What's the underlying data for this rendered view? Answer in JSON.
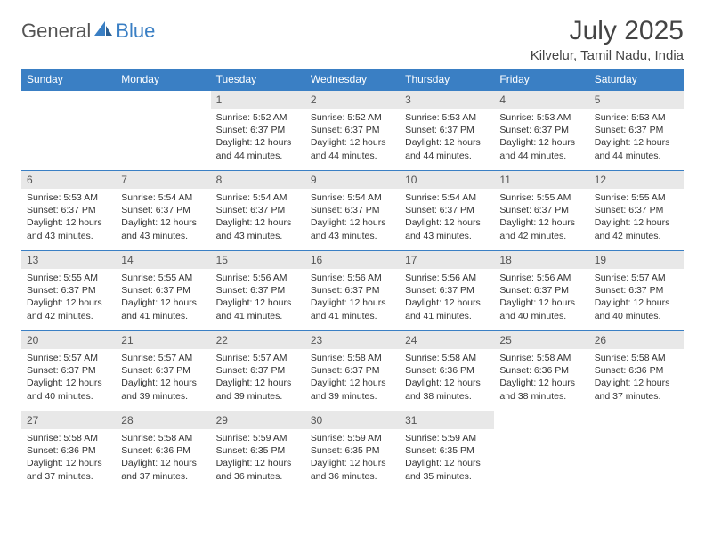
{
  "logo": {
    "text1": "General",
    "text2": "Blue"
  },
  "title": "July 2025",
  "location": "Kilvelur, Tamil Nadu, India",
  "colors": {
    "header_bg": "#3a7fc4",
    "header_text": "#ffffff",
    "daynum_bg": "#e8e8e8",
    "border": "#3a7fc4",
    "text": "#333333"
  },
  "weekdays": [
    "Sunday",
    "Monday",
    "Tuesday",
    "Wednesday",
    "Thursday",
    "Friday",
    "Saturday"
  ],
  "weeks": [
    [
      null,
      null,
      {
        "n": "1",
        "sr": "5:52 AM",
        "ss": "6:37 PM",
        "dl": "12 hours and 44 minutes."
      },
      {
        "n": "2",
        "sr": "5:52 AM",
        "ss": "6:37 PM",
        "dl": "12 hours and 44 minutes."
      },
      {
        "n": "3",
        "sr": "5:53 AM",
        "ss": "6:37 PM",
        "dl": "12 hours and 44 minutes."
      },
      {
        "n": "4",
        "sr": "5:53 AM",
        "ss": "6:37 PM",
        "dl": "12 hours and 44 minutes."
      },
      {
        "n": "5",
        "sr": "5:53 AM",
        "ss": "6:37 PM",
        "dl": "12 hours and 44 minutes."
      }
    ],
    [
      {
        "n": "6",
        "sr": "5:53 AM",
        "ss": "6:37 PM",
        "dl": "12 hours and 43 minutes."
      },
      {
        "n": "7",
        "sr": "5:54 AM",
        "ss": "6:37 PM",
        "dl": "12 hours and 43 minutes."
      },
      {
        "n": "8",
        "sr": "5:54 AM",
        "ss": "6:37 PM",
        "dl": "12 hours and 43 minutes."
      },
      {
        "n": "9",
        "sr": "5:54 AM",
        "ss": "6:37 PM",
        "dl": "12 hours and 43 minutes."
      },
      {
        "n": "10",
        "sr": "5:54 AM",
        "ss": "6:37 PM",
        "dl": "12 hours and 43 minutes."
      },
      {
        "n": "11",
        "sr": "5:55 AM",
        "ss": "6:37 PM",
        "dl": "12 hours and 42 minutes."
      },
      {
        "n": "12",
        "sr": "5:55 AM",
        "ss": "6:37 PM",
        "dl": "12 hours and 42 minutes."
      }
    ],
    [
      {
        "n": "13",
        "sr": "5:55 AM",
        "ss": "6:37 PM",
        "dl": "12 hours and 42 minutes."
      },
      {
        "n": "14",
        "sr": "5:55 AM",
        "ss": "6:37 PM",
        "dl": "12 hours and 41 minutes."
      },
      {
        "n": "15",
        "sr": "5:56 AM",
        "ss": "6:37 PM",
        "dl": "12 hours and 41 minutes."
      },
      {
        "n": "16",
        "sr": "5:56 AM",
        "ss": "6:37 PM",
        "dl": "12 hours and 41 minutes."
      },
      {
        "n": "17",
        "sr": "5:56 AM",
        "ss": "6:37 PM",
        "dl": "12 hours and 41 minutes."
      },
      {
        "n": "18",
        "sr": "5:56 AM",
        "ss": "6:37 PM",
        "dl": "12 hours and 40 minutes."
      },
      {
        "n": "19",
        "sr": "5:57 AM",
        "ss": "6:37 PM",
        "dl": "12 hours and 40 minutes."
      }
    ],
    [
      {
        "n": "20",
        "sr": "5:57 AM",
        "ss": "6:37 PM",
        "dl": "12 hours and 40 minutes."
      },
      {
        "n": "21",
        "sr": "5:57 AM",
        "ss": "6:37 PM",
        "dl": "12 hours and 39 minutes."
      },
      {
        "n": "22",
        "sr": "5:57 AM",
        "ss": "6:37 PM",
        "dl": "12 hours and 39 minutes."
      },
      {
        "n": "23",
        "sr": "5:58 AM",
        "ss": "6:37 PM",
        "dl": "12 hours and 39 minutes."
      },
      {
        "n": "24",
        "sr": "5:58 AM",
        "ss": "6:36 PM",
        "dl": "12 hours and 38 minutes."
      },
      {
        "n": "25",
        "sr": "5:58 AM",
        "ss": "6:36 PM",
        "dl": "12 hours and 38 minutes."
      },
      {
        "n": "26",
        "sr": "5:58 AM",
        "ss": "6:36 PM",
        "dl": "12 hours and 37 minutes."
      }
    ],
    [
      {
        "n": "27",
        "sr": "5:58 AM",
        "ss": "6:36 PM",
        "dl": "12 hours and 37 minutes."
      },
      {
        "n": "28",
        "sr": "5:58 AM",
        "ss": "6:36 PM",
        "dl": "12 hours and 37 minutes."
      },
      {
        "n": "29",
        "sr": "5:59 AM",
        "ss": "6:35 PM",
        "dl": "12 hours and 36 minutes."
      },
      {
        "n": "30",
        "sr": "5:59 AM",
        "ss": "6:35 PM",
        "dl": "12 hours and 36 minutes."
      },
      {
        "n": "31",
        "sr": "5:59 AM",
        "ss": "6:35 PM",
        "dl": "12 hours and 35 minutes."
      },
      null,
      null
    ]
  ],
  "labels": {
    "sunrise": "Sunrise:",
    "sunset": "Sunset:",
    "daylight": "Daylight:"
  }
}
